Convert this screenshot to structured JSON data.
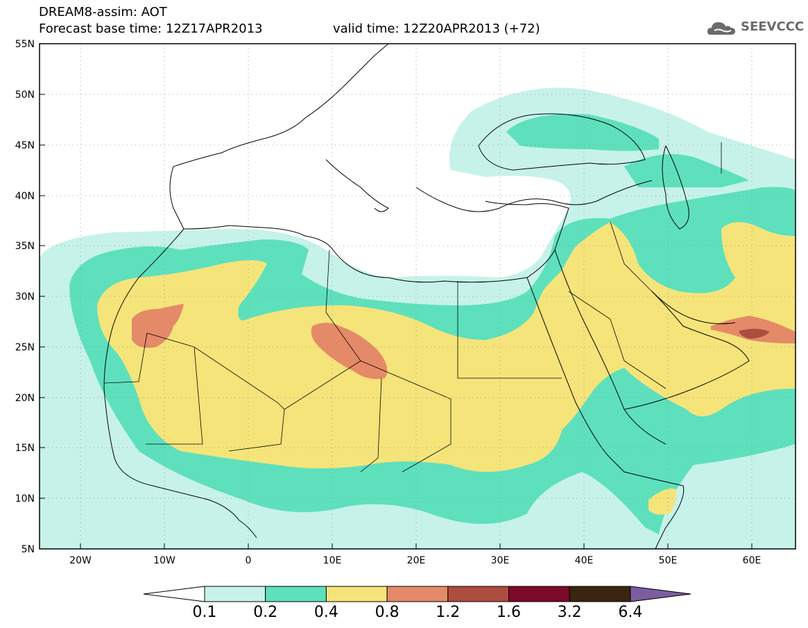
{
  "header": {
    "title_line1": "DREAM8-assim: AOT",
    "title_line2": "Forecast base time: 12Z17APR2013",
    "valid_time": "valid time: 12Z20APR2013 (+72)"
  },
  "logo": {
    "text": "SEEVCCC",
    "icon": "cloud-icon"
  },
  "map_data": {
    "variable": "AOT",
    "projection": "equirectangular",
    "lon_range": [
      -25,
      65
    ],
    "lat_range": [
      5,
      55
    ],
    "lon_ticks": [
      "20W",
      "10W",
      "0",
      "10E",
      "20E",
      "30E",
      "40E",
      "50E",
      "60E"
    ],
    "lat_ticks": [
      "55N",
      "50N",
      "45N",
      "40N",
      "35N",
      "30N",
      "25N",
      "20N",
      "15N",
      "10N",
      "5N"
    ],
    "gridlines": true
  },
  "colorbar": {
    "labels": [
      "0.1",
      "0.2",
      "0.4",
      "0.8",
      "1.2",
      "1.6",
      "3.2",
      "6.4"
    ],
    "colors": [
      "#c6f2ea",
      "#5ee0bd",
      "#f5e47a",
      "#e58a68",
      "#ad4d40",
      "#7d0a2a",
      "#3b2410",
      "#7b5ea0"
    ],
    "arrow_low_color": "#ffffff"
  }
}
